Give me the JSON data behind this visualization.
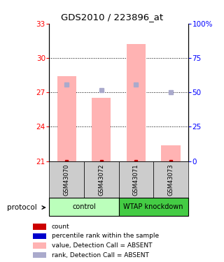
{
  "title": "GDS2010 / 223896_at",
  "samples": [
    "GSM43070",
    "GSM43072",
    "GSM43071",
    "GSM43073"
  ],
  "group_labels": [
    "control",
    "WTAP knockdown"
  ],
  "bar_values": [
    28.4,
    26.5,
    31.2,
    22.4
  ],
  "rank_values": [
    27.7,
    27.2,
    27.7,
    27.0
  ],
  "bar_bottom": 21.0,
  "ylim_left": [
    21,
    33
  ],
  "yticks_left": [
    21,
    24,
    27,
    30,
    33
  ],
  "ylim_right": [
    0,
    100
  ],
  "yticks_right": [
    0,
    25,
    50,
    75,
    100
  ],
  "ytick_right_labels": [
    "0",
    "25",
    "50",
    "75",
    "100%"
  ],
  "bar_color": "#ffb3b3",
  "rank_color": "#aaaacc",
  "count_color": "#cc0000",
  "bar_width": 0.55,
  "group_bg_color_light": "#bbffbb",
  "group_bg_color_dark": "#44cc44",
  "sample_area_color": "#cccccc",
  "legend_items": [
    {
      "label": "count",
      "color": "#cc0000"
    },
    {
      "label": "percentile rank within the sample",
      "color": "#0000cc"
    },
    {
      "label": "value, Detection Call = ABSENT",
      "color": "#ffb3b3"
    },
    {
      "label": "rank, Detection Call = ABSENT",
      "color": "#aaaacc"
    }
  ]
}
